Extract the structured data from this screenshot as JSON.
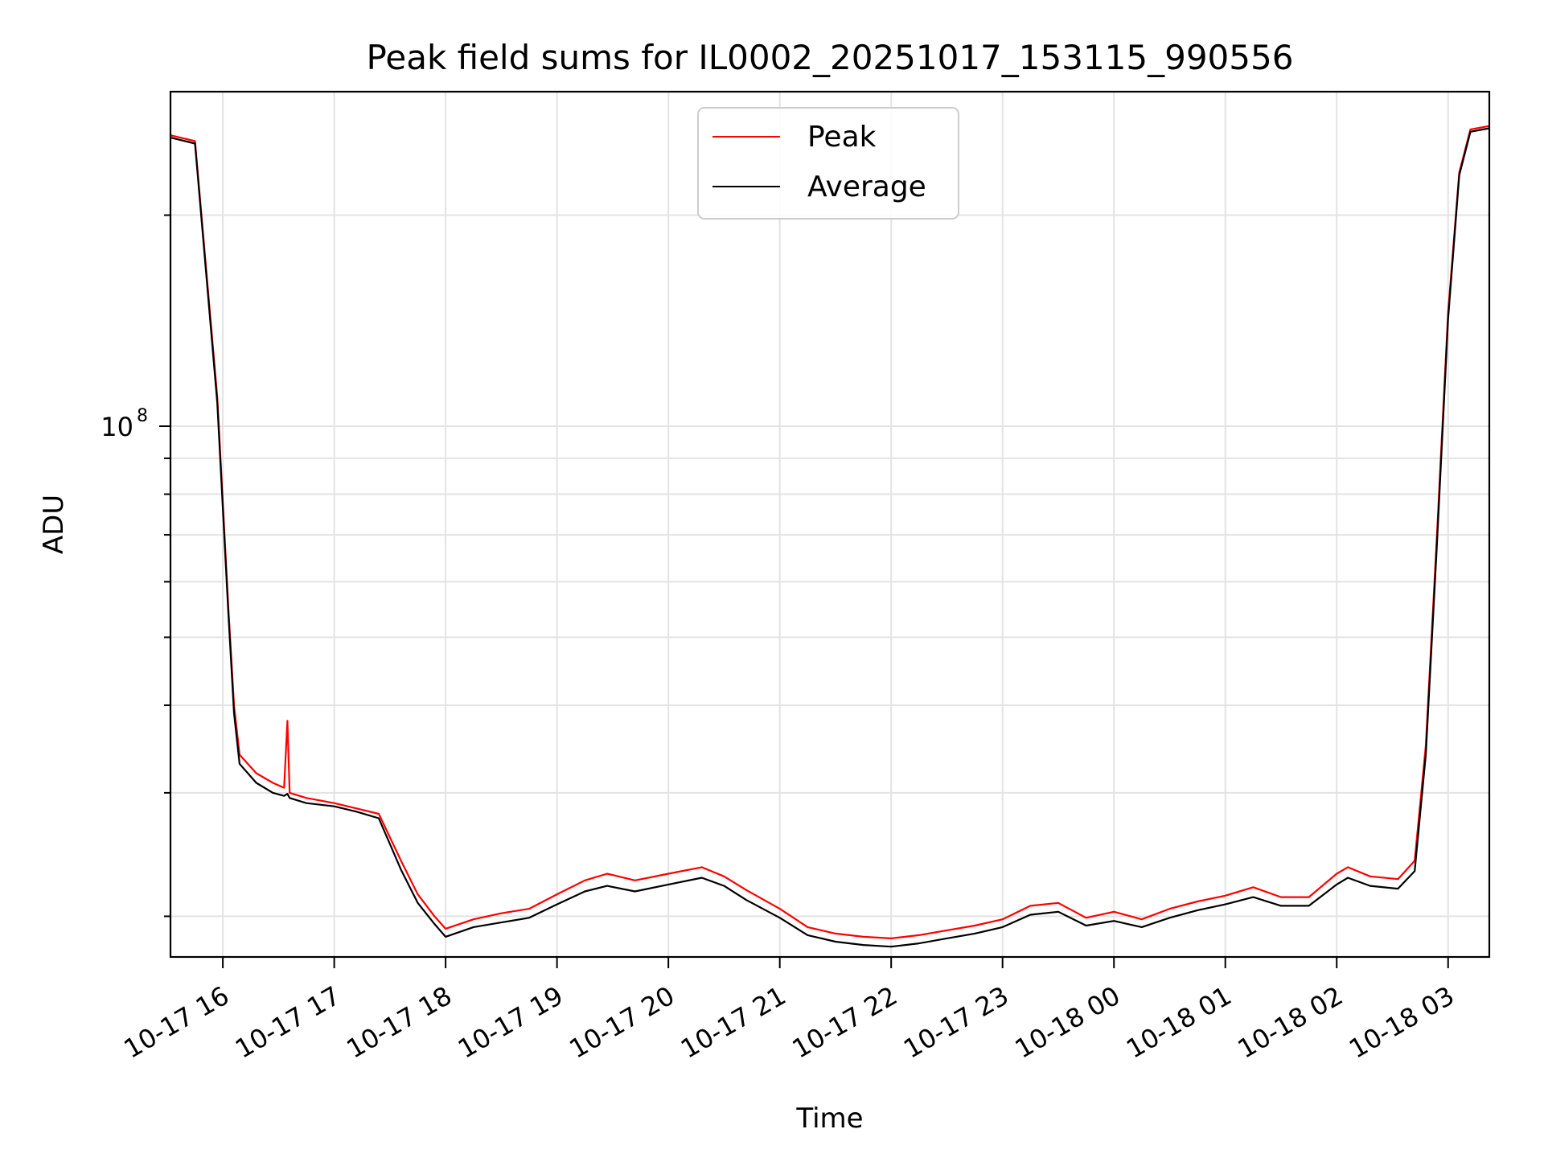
{
  "chart_data": {
    "type": "line",
    "title": "Peak field sums for IL0002_20251017_153115_990556",
    "xlabel": "Time",
    "ylabel": "ADU",
    "yscale": "log",
    "xlim_hours": [
      15.53,
      27.37
    ],
    "ylim": [
      17500000,
      300000000
    ],
    "grid": true,
    "legend_position": "upper center",
    "x_ticks": [
      {
        "hour": 16,
        "label": "10-17 16"
      },
      {
        "hour": 17,
        "label": "10-17 17"
      },
      {
        "hour": 18,
        "label": "10-17 18"
      },
      {
        "hour": 19,
        "label": "10-17 19"
      },
      {
        "hour": 20,
        "label": "10-17 20"
      },
      {
        "hour": 21,
        "label": "10-17 21"
      },
      {
        "hour": 22,
        "label": "10-17 22"
      },
      {
        "hour": 23,
        "label": "10-17 23"
      },
      {
        "hour": 24,
        "label": "10-18 00"
      },
      {
        "hour": 25,
        "label": "10-18 01"
      },
      {
        "hour": 26,
        "label": "10-18 02"
      },
      {
        "hour": 27,
        "label": "10-18 03"
      }
    ],
    "y_major_ticks": [
      {
        "value": 100000000,
        "label_base": "10",
        "label_exp": "8"
      }
    ],
    "y_minor_ticks": [
      20000000,
      30000000,
      40000000,
      50000000,
      60000000,
      70000000,
      80000000,
      90000000,
      200000000
    ],
    "series": [
      {
        "name": "Peak",
        "color": "#ff0000",
        "hours": [
          15.53,
          15.75,
          15.95,
          16.05,
          16.1,
          16.15,
          16.3,
          16.45,
          16.55,
          16.58,
          16.6,
          16.75,
          17.0,
          17.2,
          17.4,
          17.6,
          17.75,
          17.9,
          18.0,
          18.25,
          18.5,
          18.75,
          19.0,
          19.25,
          19.45,
          19.7,
          20.0,
          20.3,
          20.5,
          20.7,
          21.0,
          21.25,
          21.5,
          21.75,
          22.0,
          22.25,
          22.5,
          22.75,
          23.0,
          23.25,
          23.5,
          23.75,
          24.0,
          24.25,
          24.5,
          24.75,
          25.0,
          25.25,
          25.5,
          25.75,
          26.0,
          26.1,
          26.3,
          26.55,
          26.7,
          26.8,
          26.9,
          27.0,
          27.1,
          27.2,
          27.37
        ],
        "values": [
          260000000,
          255000000,
          110000000,
          55000000,
          40000000,
          34000000,
          32000000,
          31000000,
          30500000,
          38000000,
          30000000,
          29500000,
          29000000,
          28500000,
          28000000,
          24000000,
          21500000,
          20000000,
          19200000,
          19800000,
          20200000,
          20500000,
          21500000,
          22500000,
          23000000,
          22500000,
          23000000,
          23500000,
          22800000,
          21800000,
          20500000,
          19300000,
          18900000,
          18700000,
          18600000,
          18800000,
          19100000,
          19400000,
          19800000,
          20700000,
          20900000,
          19900000,
          20300000,
          19800000,
          20500000,
          21000000,
          21400000,
          22000000,
          21300000,
          21300000,
          23000000,
          23500000,
          22800000,
          22600000,
          24000000,
          35000000,
          70000000,
          145000000,
          230000000,
          265000000,
          268000000
        ]
      },
      {
        "name": "Average",
        "color": "#000000",
        "hours": [
          15.53,
          15.75,
          15.95,
          16.05,
          16.1,
          16.15,
          16.3,
          16.45,
          16.55,
          16.58,
          16.6,
          16.75,
          17.0,
          17.2,
          17.4,
          17.6,
          17.75,
          17.9,
          18.0,
          18.25,
          18.5,
          18.75,
          19.0,
          19.25,
          19.45,
          19.7,
          20.0,
          20.3,
          20.5,
          20.7,
          21.0,
          21.25,
          21.5,
          21.75,
          22.0,
          22.25,
          22.5,
          22.75,
          23.0,
          23.25,
          23.5,
          23.75,
          24.0,
          24.25,
          24.5,
          24.75,
          25.0,
          25.25,
          25.5,
          25.75,
          26.0,
          26.1,
          26.3,
          26.55,
          26.7,
          26.8,
          26.9,
          27.0,
          27.1,
          27.2,
          27.37
        ],
        "values": [
          258000000,
          253000000,
          108000000,
          54000000,
          39000000,
          33000000,
          31000000,
          30000000,
          29700000,
          29900000,
          29500000,
          29000000,
          28700000,
          28200000,
          27600000,
          23300000,
          20900000,
          19500000,
          18700000,
          19300000,
          19600000,
          19900000,
          20800000,
          21700000,
          22100000,
          21700000,
          22200000,
          22700000,
          22100000,
          21100000,
          19900000,
          18800000,
          18400000,
          18200000,
          18100000,
          18300000,
          18600000,
          18900000,
          19300000,
          20100000,
          20300000,
          19400000,
          19700000,
          19300000,
          19900000,
          20400000,
          20800000,
          21300000,
          20700000,
          20700000,
          22200000,
          22700000,
          22100000,
          21900000,
          23200000,
          34000000,
          68000000,
          142000000,
          228000000,
          263000000,
          266000000
        ]
      }
    ]
  }
}
